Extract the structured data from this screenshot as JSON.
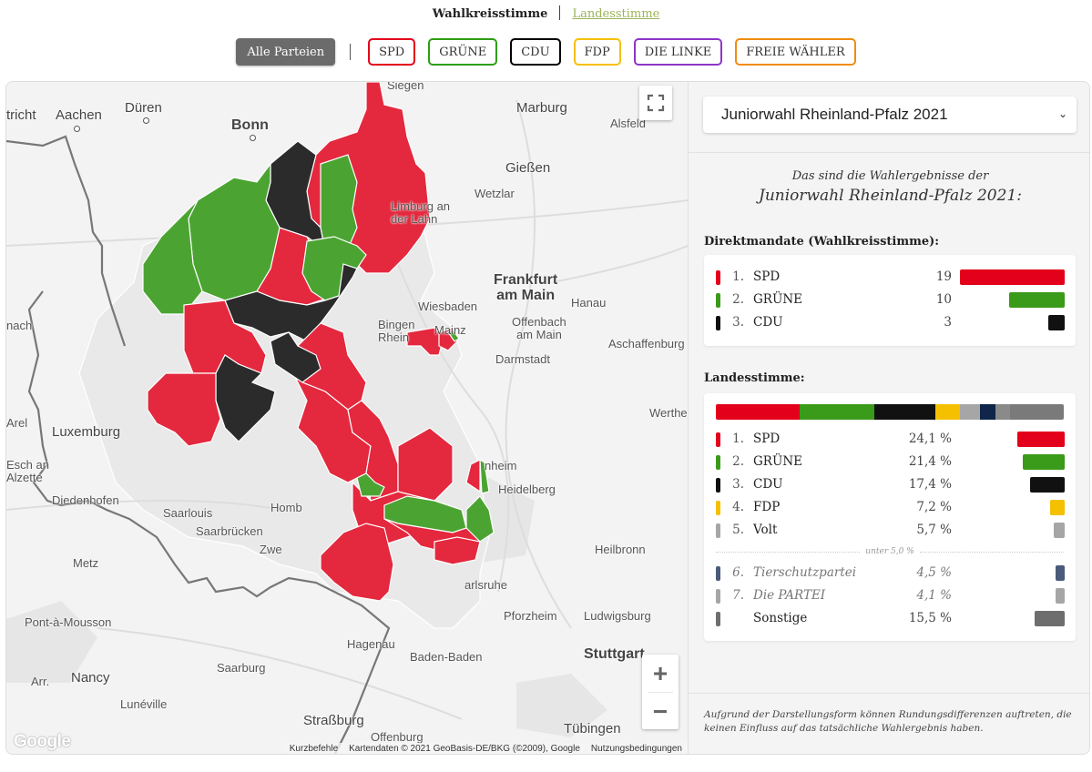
{
  "vote_tabs": {
    "active": "Wahlkreisstimme",
    "other": "Landesstimme"
  },
  "filters": {
    "all": "Alle Parteien",
    "parties": [
      {
        "label": "SPD",
        "color": "#e3001b"
      },
      {
        "label": "GRÜNE",
        "color": "#2e9e12"
      },
      {
        "label": "CDU",
        "color": "#000000"
      },
      {
        "label": "FDP",
        "color": "#f5c000"
      },
      {
        "label": "DIE LINKE",
        "color": "#8e35c7"
      },
      {
        "label": "FREIE WÄHLER",
        "color": "#f08c10"
      }
    ]
  },
  "map": {
    "labels": {
      "siegen": "Siegen",
      "marburg": "Marburg",
      "alsfeld": "Alsfeld",
      "aachen": "Aachen",
      "trier_nl": "tricht",
      "dueren": "Düren",
      "bonn": "Bonn",
      "giessen": "Gießen",
      "wetzlar": "Wetzlar",
      "limburg": "Limburg an\nder Lahn",
      "frankfurt": "Frankfurt\nam Main",
      "hanau": "Hanau",
      "wiesbaden": "Wiesbaden",
      "mainz": "Mainz",
      "offenbach": "Offenbach\nam Main",
      "aschaffenburg": "Aschaffenburg",
      "darmstadt": "Darmstadt",
      "wertheim": "Wertheim",
      "bingen": "Bingen\nRhein",
      "arel": "Arel",
      "luxemburg": "Luxemburg",
      "esch": "Esch an\nAlzette",
      "diedenhofen": "Diedenhofen",
      "saarlouis": "Saarlouis",
      "homburg": "Homb",
      "saarbruecken": "Saarbrücken",
      "zweibruecken": "Zwe",
      "mannheim": "nheim",
      "heidelberg": "Heidelberg",
      "heilbronn": "Heilbronn",
      "metz": "Metz",
      "karlsruhe": "arlsruhe",
      "pforzheim": "Pforzheim",
      "ludwigsburg": "Ludwigsburg",
      "pont": "Pont-à-Mousson",
      "hagenau": "Hagenau",
      "stuttgart": "Stuttgart",
      "baden": "Baden-Baden",
      "saarburg": "Saarburg",
      "arr": "Arr.",
      "nancy": "Nancy",
      "luneville": "Lunéville",
      "strassburg": "Straßburg",
      "offenburg": "Offenburg",
      "tuebingen": "Tübingen",
      "nach": "nach"
    },
    "zoom_in": "+",
    "zoom_out": "−",
    "google": "Google",
    "attribution": [
      "Kurzbefehle",
      "Kartendaten © 2021 GeoBasis-DE/BKG (©2009), Google",
      "Nutzungsbedingungen"
    ]
  },
  "sidebar": {
    "election_select": "Juniorwahl Rheinland-Pfalz 2021",
    "intro_line1": "Das sind die Wahlergebnisse der",
    "intro_line2": "Juniorwahl Rheinland-Pfalz 2021:",
    "direct_title": "Direktmandate (Wahlkreisstimme):",
    "direct": [
      {
        "rank": "1.",
        "name": "SPD",
        "value": "19",
        "seats": 19,
        "color": "#e3001b"
      },
      {
        "rank": "2.",
        "name": "GRÜNE",
        "value": "10",
        "seats": 10,
        "color": "#3a9a1a"
      },
      {
        "rank": "3.",
        "name": "CDU",
        "value": "3",
        "seats": 3,
        "color": "#111111"
      }
    ],
    "list_title": "Landesstimme:",
    "list": [
      {
        "rank": "1.",
        "name": "SPD",
        "value": "24,1 %",
        "pct": 24.1,
        "color": "#e3001b"
      },
      {
        "rank": "2.",
        "name": "GRÜNE",
        "value": "21,4 %",
        "pct": 21.4,
        "color": "#3a9a1a"
      },
      {
        "rank": "3.",
        "name": "CDU",
        "value": "17,4 %",
        "pct": 17.4,
        "color": "#111111"
      },
      {
        "rank": "4.",
        "name": "FDP",
        "value": "7,2 %",
        "pct": 7.2,
        "color": "#f5c000"
      },
      {
        "rank": "5.",
        "name": "Volt",
        "value": "5,7 %",
        "pct": 5.7,
        "color": "#a6a6a6"
      }
    ],
    "threshold_label": "unter 5,0 %",
    "list_small": [
      {
        "rank": "6.",
        "name": "Tierschutzpartei",
        "value": "4,5 %",
        "pct": 4.5,
        "color": "#4a5a7a"
      },
      {
        "rank": "7.",
        "name": "Die PARTEI",
        "value": "4,1 %",
        "pct": 4.1,
        "color": "#a6a6a6"
      }
    ],
    "others": {
      "name": "Sonstige",
      "value": "15,5 %",
      "pct": 15.5,
      "color": "#6e6e6e"
    },
    "stack_colors": [
      "#e3001b",
      "#3a9a1a",
      "#111111",
      "#f5c000",
      "#a6a6a6",
      "#0f254a",
      "#8a8a8a",
      "#7a7a7a"
    ],
    "footnote": "Aufgrund der Darstellungsform können Rundungsdifferenzen auftreten, die keinen Einfluss auf das tatsächliche Wahlergebnis haben."
  }
}
